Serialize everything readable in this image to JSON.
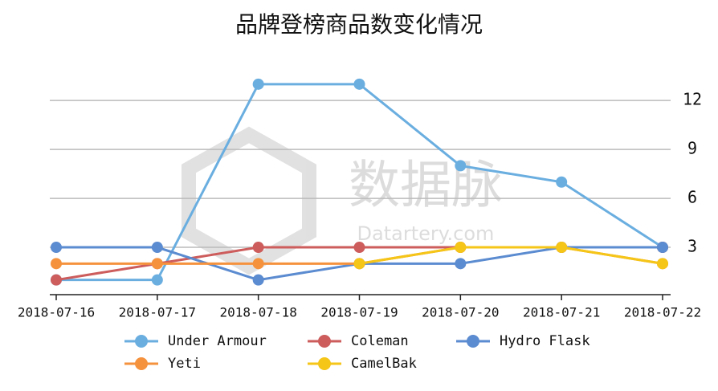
{
  "chart_data": {
    "type": "line",
    "title": "品牌登榜商品数变化情况",
    "categories": [
      "2018-07-16",
      "2018-07-17",
      "2018-07-18",
      "2018-07-19",
      "2018-07-20",
      "2018-07-21",
      "2018-07-22"
    ],
    "series": [
      {
        "name": "Under Armour",
        "color": "#6aaee0",
        "values": [
          1,
          1,
          13,
          13,
          8,
          7,
          3
        ]
      },
      {
        "name": "Coleman",
        "color": "#cd5c5c",
        "values": [
          1,
          2,
          3,
          3,
          3,
          3,
          3
        ]
      },
      {
        "name": "Hydro Flask",
        "color": "#5b8bd0",
        "values": [
          3,
          3,
          1,
          2,
          2,
          3,
          3
        ]
      },
      {
        "name": "Yeti",
        "color": "#f5923e",
        "values": [
          2,
          2,
          2,
          2,
          3,
          3,
          2
        ]
      },
      {
        "name": "CamelBak",
        "color": "#f5c518",
        "values": [
          null,
          null,
          null,
          2,
          3,
          3,
          2
        ]
      }
    ],
    "ylim": [
      0,
      14
    ],
    "yticks": [
      3,
      6,
      9,
      12
    ],
    "grid": true
  },
  "watermark": {
    "text": "数据脉",
    "url": "Datartery.com"
  }
}
